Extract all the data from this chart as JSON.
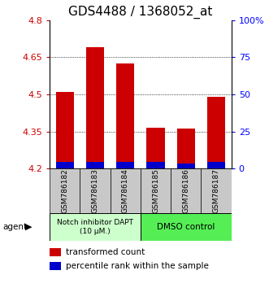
{
  "title": "GDS4488 / 1368052_at",
  "samples": [
    "GSM786182",
    "GSM786183",
    "GSM786184",
    "GSM786185",
    "GSM786186",
    "GSM786187"
  ],
  "red_values": [
    4.51,
    4.69,
    4.625,
    4.365,
    4.36,
    4.49
  ],
  "blue_values": [
    4.225,
    4.225,
    4.225,
    4.225,
    4.22,
    4.225
  ],
  "base_value": 4.2,
  "ylim_min": 4.2,
  "ylim_max": 4.8,
  "yticks_left": [
    4.2,
    4.35,
    4.5,
    4.65,
    4.8
  ],
  "yticks_right_vals": [
    0,
    25,
    50,
    75,
    100
  ],
  "yticks_right_labels": [
    "0",
    "25",
    "50",
    "75",
    "100%"
  ],
  "group1_label": "Notch inhibitor DAPT\n(10 μM.)",
  "group2_label": "DMSO control",
  "group1_color": "#ccffcc",
  "group2_color": "#55ee55",
  "red_color": "#cc0000",
  "blue_color": "#0000cc",
  "bar_gray": "#c8c8c8",
  "legend1_label": "transformed count",
  "legend2_label": "percentile rank within the sample",
  "bar_width": 0.6,
  "title_fontsize": 11,
  "tick_fontsize": 8,
  "sample_fontsize": 6.5,
  "legend_fontsize": 7.5
}
